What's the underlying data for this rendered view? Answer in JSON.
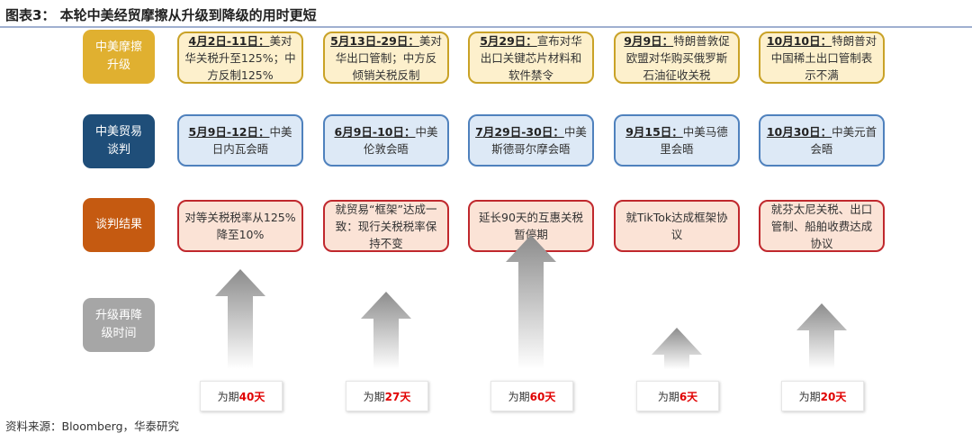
{
  "title": "图表3： 本轮中美经贸摩擦从升级到降级的用时更短",
  "source": "资料来源：Bloomberg，华泰研究",
  "colors": {
    "escalation": "#e0b030",
    "negotiation": "#1f4e79",
    "result": "#c55a11",
    "duration": "#a6a6a6"
  },
  "row_labels": [
    "中美摩擦升级",
    "中美贸易谈判",
    "谈判结果",
    "升级再降级时间"
  ],
  "escalation": [
    {
      "date": "4月2日-11日：",
      "text": "美对华关税升至125%；中方反制125%"
    },
    {
      "date": "5月13日-29日：",
      "text": "美对华出口管制；中方反倾销关税反制"
    },
    {
      "date": "5月29日：",
      "text": "宣布对华出口关键芯片材料和软件禁令"
    },
    {
      "date": "9月9日：",
      "text": "特朗普敦促欧盟对华购买俄罗斯石油征收关税"
    },
    {
      "date": "10月10日：",
      "text": "特朗普对中国稀土出口管制表示不满"
    }
  ],
  "negotiation": [
    {
      "date": "5月9日-12日：",
      "text": "中美日内瓦会晤"
    },
    {
      "date": "6月9日-10日：",
      "text": "中美伦敦会晤"
    },
    {
      "date": "7月29日-30日：",
      "text": "中美斯德哥尔摩会晤"
    },
    {
      "date": "9月15日：",
      "text": "中美马德里会晤"
    },
    {
      "date": "10月30日：",
      "text": "中美元首会晤"
    }
  ],
  "results": [
    "对等关税税率从125%降至10%",
    "就贸易“框架”达成一致：现行关税税率保持不变",
    "延长90天的互惠关税暂停期",
    "就TikTok达成框架协议",
    "就芬太尼关税、出口管制、船舶收费达成协议"
  ],
  "durations": [
    {
      "prefix": "为期",
      "value": "40天",
      "days": 40
    },
    {
      "prefix": "为期",
      "value": "27天",
      "days": 27
    },
    {
      "prefix": "为期",
      "value": "60天",
      "days": 60
    },
    {
      "prefix": "为期",
      "value": "6天",
      "days": 6
    },
    {
      "prefix": "为期",
      "value": "20天",
      "days": 20
    }
  ]
}
